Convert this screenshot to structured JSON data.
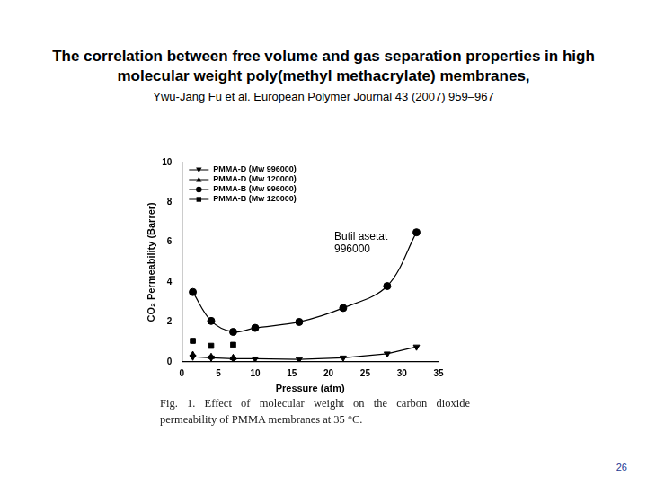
{
  "chart_data": {
    "type": "line",
    "title": "The correlation between free volume and gas separation properties in high molecular weight poly(methyl methacrylate) membranes,",
    "subtitle": "Ywu-Jang Fu et al.  European Polymer Journal 43 (2007) 959–967",
    "annotation": "Butil asetat\n996000",
    "caption": "Fig. 1. Effect of molecular weight on the carbon dioxide permeability of PMMA membranes at 35 °C.",
    "page_number": 26,
    "x_label": "Pressure (atm)",
    "y_label": "CO₂ Permeability (Barrer)",
    "xlim": [
      0,
      35
    ],
    "xticks": [
      0,
      5,
      10,
      15,
      20,
      25,
      30,
      35
    ],
    "ylim": [
      0,
      10
    ],
    "yticks": [
      0,
      2,
      4,
      6,
      8,
      10
    ],
    "grid": false,
    "legend": "upper left",
    "series": [
      {
        "name": "PMMA-D (Mw 996000)",
        "color": "#000000",
        "marker": "triangle_down",
        "line_style": "solid",
        "x": [
          1.5,
          4,
          7,
          10,
          16,
          22,
          28,
          32
        ],
        "values": [
          0.25,
          0.2,
          0.15,
          0.15,
          0.12,
          0.2,
          0.4,
          0.75
        ]
      },
      {
        "name": "PMMA-D (Mw 120000)",
        "color": "#000000",
        "marker": "triangle_up",
        "line_style": "none",
        "x": [
          1.5,
          4,
          7
        ],
        "values": [
          0.35,
          0.25,
          0.2
        ]
      },
      {
        "name": "PMMA-B (Mw 996000)",
        "color": "#000000",
        "marker": "circle",
        "line_style": "solid",
        "x": [
          1.5,
          4,
          7,
          10,
          16,
          22,
          28,
          32
        ],
        "values": [
          3.5,
          2.05,
          1.5,
          1.7,
          2.0,
          2.7,
          3.8,
          6.5
        ]
      },
      {
        "name": "PMMA-B (Mw 120000)",
        "color": "#000000",
        "marker": "square",
        "line_style": "none",
        "x": [
          1.5,
          4,
          7
        ],
        "values": [
          1.05,
          0.8,
          0.85
        ]
      }
    ]
  }
}
